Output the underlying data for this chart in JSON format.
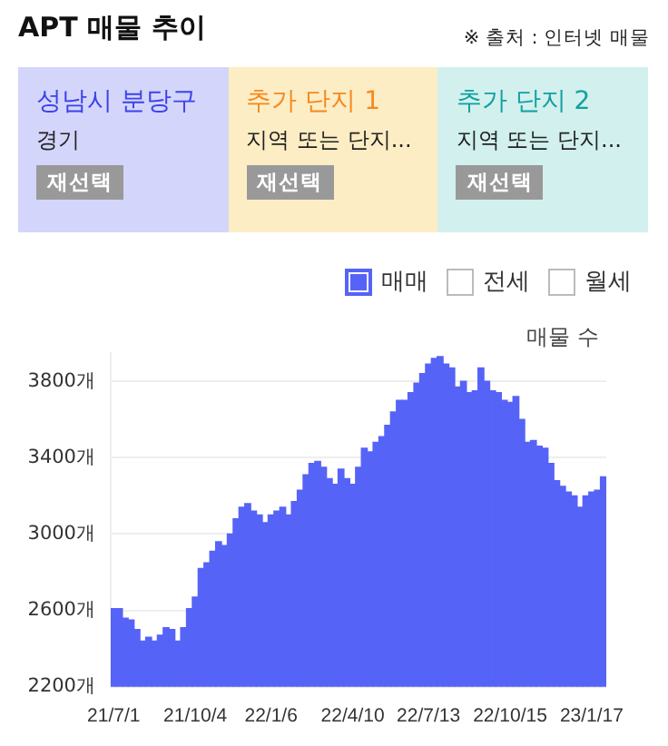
{
  "chart_data": [
    {
      "type": "other",
      "title": "APT 매물 추이",
      "annotations": [
        "※ 출처 : 인터넷 매물",
        "성남시 분당구",
        "경기",
        "재선택",
        "추가 단지 1",
        "지역 또는 단지...",
        "재선택",
        "추가 단지 2",
        "지역 또는 단지...",
        "재선택"
      ]
    },
    {
      "type": "bar",
      "ylabel": "매물 수",
      "annotations": [
        "전세",
        "월세"
      ],
      "categories": [
        "21/7/1",
        null,
        null,
        null,
        null,
        null,
        null,
        null,
        null,
        null,
        null,
        null,
        null,
        null,
        "21/10/4",
        null,
        null,
        null,
        null,
        null,
        null,
        null,
        null,
        null,
        null,
        null,
        null,
        "22/1/6",
        null,
        null,
        null,
        null,
        null,
        null,
        null,
        null,
        null,
        null,
        null,
        null,
        null,
        "22/4/10",
        null,
        null,
        null,
        null,
        null,
        null,
        null,
        null,
        null,
        null,
        null,
        null,
        "22/7/13",
        null,
        null,
        null,
        null,
        null,
        null,
        null,
        null,
        null,
        null,
        null,
        null,
        null,
        "22/10/15",
        null,
        null,
        null,
        null,
        null,
        null,
        null,
        null,
        null,
        null,
        null,
        null,
        null,
        "23/1/17",
        null,
        null
      ],
      "series": [
        {
          "name": "매매",
          "color": "#5663f7",
          "values": [
            2610,
            2610,
            2560,
            2550,
            2500,
            2440,
            2460,
            2440,
            2470,
            2510,
            2500,
            2440,
            2510,
            2610,
            2670,
            2820,
            2850,
            2910,
            2960,
            2940,
            3000,
            3080,
            3140,
            3160,
            3120,
            3100,
            3060,
            3100,
            3120,
            3140,
            3100,
            3170,
            3230,
            3310,
            3370,
            3380,
            3350,
            3290,
            3260,
            3340,
            3290,
            3260,
            3350,
            3450,
            3430,
            3480,
            3510,
            3570,
            3640,
            3700,
            3700,
            3740,
            3790,
            3840,
            3890,
            3920,
            3930,
            3890,
            3870,
            3770,
            3800,
            3740,
            3750,
            3870,
            3800,
            3750,
            3740,
            3700,
            3690,
            3720,
            3600,
            3480,
            3490,
            3460,
            3450,
            3370,
            3280,
            3250,
            3220,
            3200,
            3140,
            3200,
            3220,
            3230,
            3300
          ]
        }
      ],
      "ylim": [
        2200,
        3950
      ],
      "yticks": [
        {
          "value": 2200,
          "label": "2200개"
        },
        {
          "value": 2600,
          "label": "2600개"
        },
        {
          "value": 3000,
          "label": "3000개"
        },
        {
          "value": 3400,
          "label": "3400개"
        },
        {
          "value": 3800,
          "label": "3800개"
        }
      ],
      "grid": "y",
      "legend": "top right"
    }
  ]
}
